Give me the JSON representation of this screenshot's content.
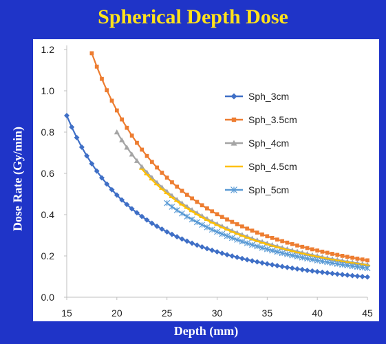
{
  "chart_data": {
    "type": "line",
    "title": "Spherical Depth Dose",
    "xlabel": "Depth (mm)",
    "ylabel": "Dose Rate (Gy/min)",
    "xlim": [
      15,
      45
    ],
    "ylim": [
      0,
      1.2
    ],
    "x_ticks": [
      "15",
      "20",
      "25",
      "30",
      "35",
      "40",
      "45"
    ],
    "y_ticks": [
      "0.0",
      "0.2",
      "0.4",
      "0.6",
      "0.8",
      "1.0",
      "1.2"
    ],
    "grid": false,
    "legend_position": "right",
    "model": "inverse-square, y = k / x^2",
    "series": [
      {
        "name": "Sph_3cm",
        "k": 198,
        "x_start": 15,
        "x_end": 45,
        "color": "#3f6fc6",
        "marker": "diamond"
      },
      {
        "name": "Sph_3.5cm",
        "k": 362,
        "x_start": 17.5,
        "x_end": 45,
        "color": "#ed7d31",
        "marker": "square"
      },
      {
        "name": "Sph_4cm",
        "k": 320,
        "x_start": 20,
        "x_end": 45,
        "color": "#a5a5a5",
        "marker": "triangle"
      },
      {
        "name": "Sph_4.5cm",
        "k": 314,
        "x_start": 22.5,
        "x_end": 45,
        "color": "#ffc000",
        "marker": "cross"
      },
      {
        "name": "Sph_5cm",
        "k": 285,
        "x_start": 25,
        "x_end": 45,
        "color": "#5b9bd5",
        "marker": "asterisk"
      }
    ]
  }
}
